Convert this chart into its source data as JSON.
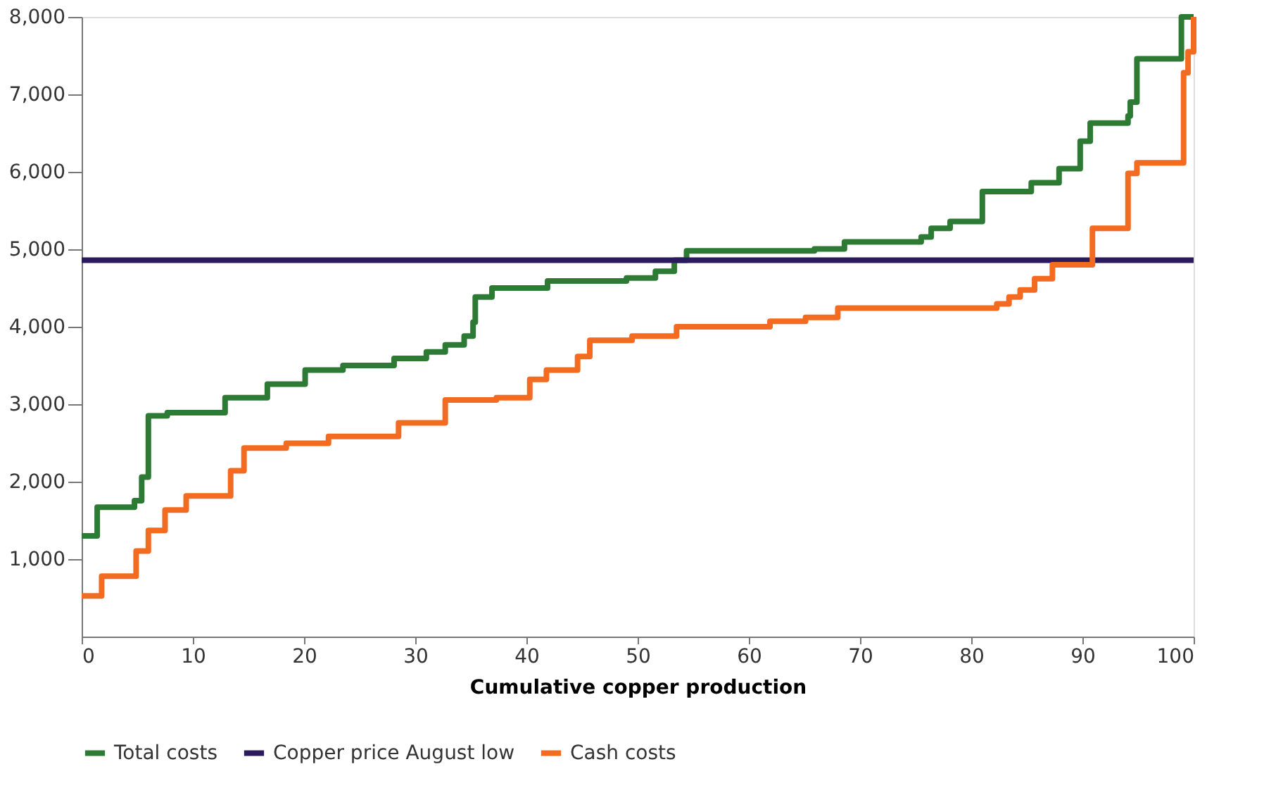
{
  "chart_data": {
    "type": "step",
    "xlabel": "Cumulative copper production",
    "xlim": [
      0,
      100
    ],
    "xticks": [
      0,
      10,
      20,
      30,
      40,
      50,
      60,
      70,
      80,
      90,
      100
    ],
    "ylim": [
      0,
      8000
    ],
    "yticks": [
      {
        "value": 1000,
        "label": "1,000"
      },
      {
        "value": 2000,
        "label": "2,000"
      },
      {
        "value": 3000,
        "label": "3,000"
      },
      {
        "value": 4000,
        "label": "4,000"
      },
      {
        "value": 5000,
        "label": "5,000"
      },
      {
        "value": 6000,
        "label": "6,000"
      },
      {
        "value": 7000,
        "label": "7,000"
      },
      {
        "value": 8000,
        "label": "8,000"
      }
    ],
    "grid": false,
    "legend": "bottom",
    "line_style": "solid",
    "marker": "none",
    "series": [
      {
        "name": "Total costs",
        "color": "#2d7a34",
        "x": [
          0,
          1.4,
          4.75,
          5.4,
          6.0,
          7.7,
          12.9,
          16.7,
          20.1,
          23.5,
          28.1,
          31.0,
          32.7,
          34.4,
          35.2,
          35.4,
          36.9,
          41.9,
          49,
          51.6,
          53.3,
          54.4,
          65.9,
          68.6,
          75.5,
          76.4,
          78.1,
          81.0,
          85.4,
          87.9,
          89.8,
          90.7,
          94.1,
          94.3,
          94.9,
          98.9,
          100
        ],
        "values": [
          1300,
          1670,
          1755,
          2060,
          2850,
          2890,
          3085,
          3260,
          3440,
          3500,
          3590,
          3675,
          3765,
          3880,
          4060,
          4385,
          4500,
          4590,
          4630,
          4715,
          4860,
          4980,
          5005,
          5095,
          5160,
          5270,
          5360,
          5745,
          5860,
          6040,
          6395,
          6630,
          6720,
          6900,
          7460,
          8000,
          8000
        ]
      },
      {
        "name": "Copper price August low",
        "color": "#2b1a5e",
        "x": [
          0,
          100
        ],
        "values": [
          4860,
          4860
        ]
      },
      {
        "name": "Cash costs",
        "color": "#f26b21",
        "x": [
          0,
          1.8,
          4.9,
          6.0,
          7.5,
          9.4,
          13.4,
          14.6,
          18.4,
          22.2,
          28.5,
          32.7,
          37.3,
          40.3,
          41.8,
          44.6,
          45.7,
          49.5,
          53.5,
          61.9,
          65.1,
          68.0,
          82.3,
          83.4,
          84.4,
          85.7,
          87.3,
          90.9,
          94.1,
          94.9,
          99.1,
          99.5,
          100
        ],
        "values": [
          525,
          780,
          1105,
          1370,
          1635,
          1815,
          2140,
          2435,
          2495,
          2585,
          2760,
          3055,
          3085,
          3320,
          3440,
          3615,
          3825,
          3880,
          4000,
          4070,
          4120,
          4240,
          4295,
          4385,
          4475,
          4620,
          4800,
          5270,
          5980,
          6115,
          7280,
          7550,
          8000
        ]
      }
    ]
  }
}
